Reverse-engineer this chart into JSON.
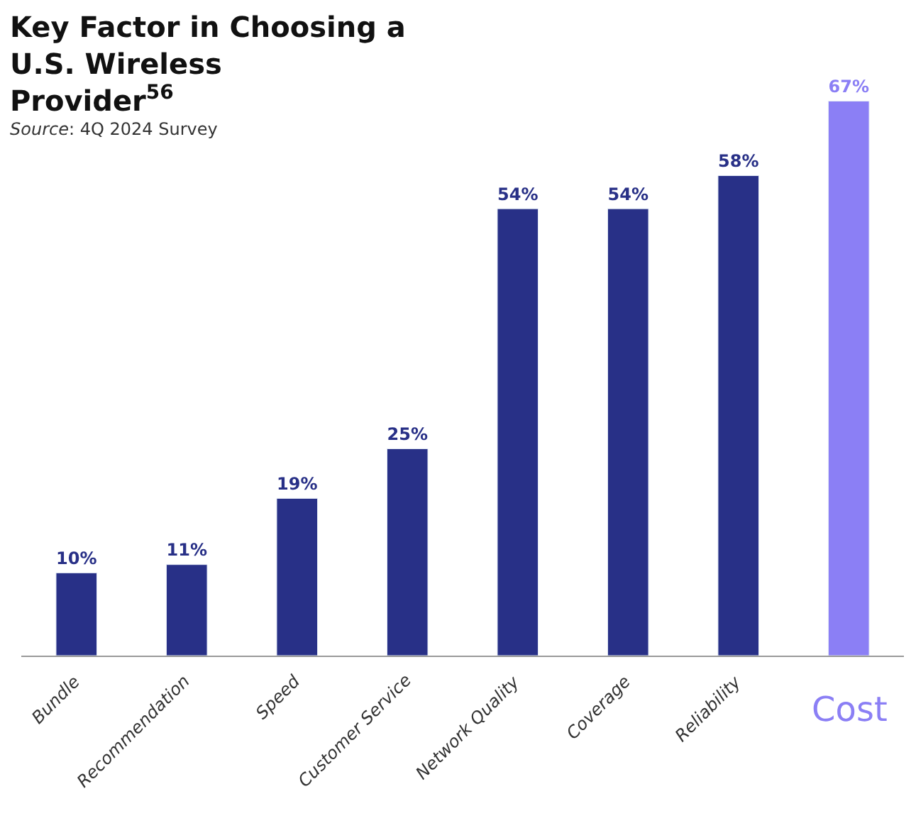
{
  "chart_data": {
    "type": "bar",
    "title": "Key Factor in Choosing a U.S. Wireless Provider$^{56}$",
    "annotations": [
      "Source: 4Q 2024 Survey"
    ],
    "categories": [
      "Bundle",
      "Recommendation",
      "Speed",
      "Customer Service",
      "Network Quality",
      "Coverage",
      "Reliability",
      "Cost"
    ],
    "values": [
      10,
      11,
      19,
      25,
      54,
      54,
      58,
      67
    ],
    "value_labels": [
      "10%",
      "11%",
      "19%",
      "25%",
      "54%",
      "54%",
      "58%",
      "67%"
    ],
    "colors": [
      "#283087",
      "#283087",
      "#283087",
      "#283087",
      "#283087",
      "#283087",
      "#283087",
      "#8b7ff5"
    ],
    "legend": false
  }
}
